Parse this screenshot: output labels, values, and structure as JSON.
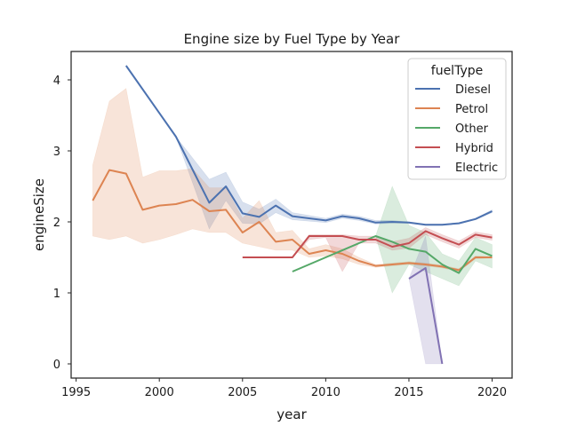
{
  "chart_data": {
    "type": "line",
    "title": "Engine size by Fuel Type by Year",
    "xlabel": "year",
    "ylabel": "engineSize",
    "xlim": [
      1994.7,
      2021.2
    ],
    "ylim": [
      -0.2,
      4.4
    ],
    "xticks": [
      1995,
      2000,
      2005,
      2010,
      2015,
      2020
    ],
    "yticks": [
      0,
      1,
      2,
      3,
      4
    ],
    "grid": false,
    "legend": {
      "title": "fuelType",
      "position": "top-right"
    },
    "series": [
      {
        "name": "Diesel",
        "color": "#4c72b0",
        "x": [
          1998,
          2001,
          2003,
          2004,
          2005,
          2006,
          2007,
          2008,
          2009,
          2010,
          2011,
          2012,
          2013,
          2014,
          2015,
          2016,
          2017,
          2018,
          2019,
          2020
        ],
        "y": [
          4.2,
          3.2,
          2.27,
          2.5,
          2.12,
          2.07,
          2.23,
          2.08,
          2.05,
          2.02,
          2.08,
          2.05,
          1.99,
          2.0,
          1.99,
          1.96,
          1.96,
          1.98,
          2.04,
          2.15
        ],
        "ci_low": [
          4.2,
          3.2,
          1.9,
          2.3,
          1.98,
          1.97,
          2.13,
          2.03,
          2.01,
          1.99,
          2.05,
          2.02,
          1.97,
          1.98,
          1.98,
          1.95,
          1.95,
          1.97,
          2.03,
          2.13
        ],
        "ci_high": [
          4.2,
          3.2,
          2.6,
          2.7,
          2.28,
          2.18,
          2.32,
          2.13,
          2.09,
          2.05,
          2.11,
          2.08,
          2.02,
          2.02,
          2.0,
          1.97,
          1.97,
          1.99,
          2.05,
          2.17
        ]
      },
      {
        "name": "Petrol",
        "color": "#dd8452",
        "x": [
          1996,
          1997,
          1998,
          1999,
          2000,
          2001,
          2002,
          2003,
          2004,
          2005,
          2006,
          2007,
          2008,
          2009,
          2010,
          2011,
          2012,
          2013,
          2014,
          2015,
          2016,
          2017,
          2018,
          2019,
          2020
        ],
        "y": [
          2.3,
          2.73,
          2.68,
          2.17,
          2.23,
          2.25,
          2.31,
          2.15,
          2.17,
          1.85,
          2.0,
          1.72,
          1.75,
          1.55,
          1.6,
          1.55,
          1.45,
          1.38,
          1.4,
          1.42,
          1.4,
          1.37,
          1.32,
          1.5,
          1.5
        ],
        "ci_low": [
          1.8,
          1.75,
          1.8,
          1.7,
          1.75,
          1.82,
          1.9,
          1.85,
          1.85,
          1.7,
          1.65,
          1.6,
          1.6,
          1.5,
          1.52,
          1.48,
          1.4,
          1.36,
          1.38,
          1.4,
          1.38,
          1.35,
          1.3,
          1.48,
          1.49
        ],
        "ci_high": [
          2.8,
          3.7,
          3.88,
          2.63,
          2.72,
          2.72,
          2.75,
          2.48,
          2.48,
          2.05,
          2.3,
          1.85,
          1.88,
          1.62,
          1.68,
          1.62,
          1.5,
          1.4,
          1.42,
          1.44,
          1.42,
          1.39,
          1.34,
          1.52,
          1.51
        ]
      },
      {
        "name": "Other",
        "color": "#55a868",
        "x": [
          2008,
          2013,
          2014,
          2015,
          2016,
          2017,
          2018,
          2019,
          2020
        ],
        "y": [
          1.3,
          1.8,
          1.72,
          1.62,
          1.58,
          1.4,
          1.28,
          1.62,
          1.52
        ],
        "ci_low": [
          1.3,
          1.8,
          1.0,
          1.4,
          1.3,
          1.2,
          1.1,
          1.45,
          1.35
        ],
        "ci_high": [
          1.3,
          1.8,
          2.5,
          1.95,
          1.85,
          1.55,
          1.45,
          1.78,
          1.68
        ]
      },
      {
        "name": "Hybrid",
        "color": "#c44e52",
        "x": [
          2005,
          2008,
          2009,
          2010,
          2011,
          2012,
          2013,
          2014,
          2015,
          2016,
          2017,
          2018,
          2019,
          2020
        ],
        "y": [
          1.5,
          1.5,
          1.8,
          1.8,
          1.8,
          1.75,
          1.75,
          1.65,
          1.7,
          1.87,
          1.77,
          1.68,
          1.82,
          1.78
        ],
        "ci_low": [
          1.5,
          1.5,
          1.75,
          1.78,
          1.3,
          1.7,
          1.7,
          1.6,
          1.63,
          1.82,
          1.72,
          1.63,
          1.78,
          1.74
        ],
        "ci_high": [
          1.5,
          1.5,
          1.82,
          1.82,
          1.82,
          1.8,
          1.8,
          1.72,
          1.77,
          1.92,
          1.82,
          1.73,
          1.86,
          1.82
        ]
      },
      {
        "name": "Electric",
        "color": "#8172b3",
        "x": [
          2015,
          2016,
          2017
        ],
        "y": [
          1.2,
          1.35,
          0.0
        ],
        "ci_low": [
          1.2,
          0.0,
          0.0
        ],
        "ci_high": [
          1.2,
          1.8,
          0.0
        ]
      }
    ]
  }
}
